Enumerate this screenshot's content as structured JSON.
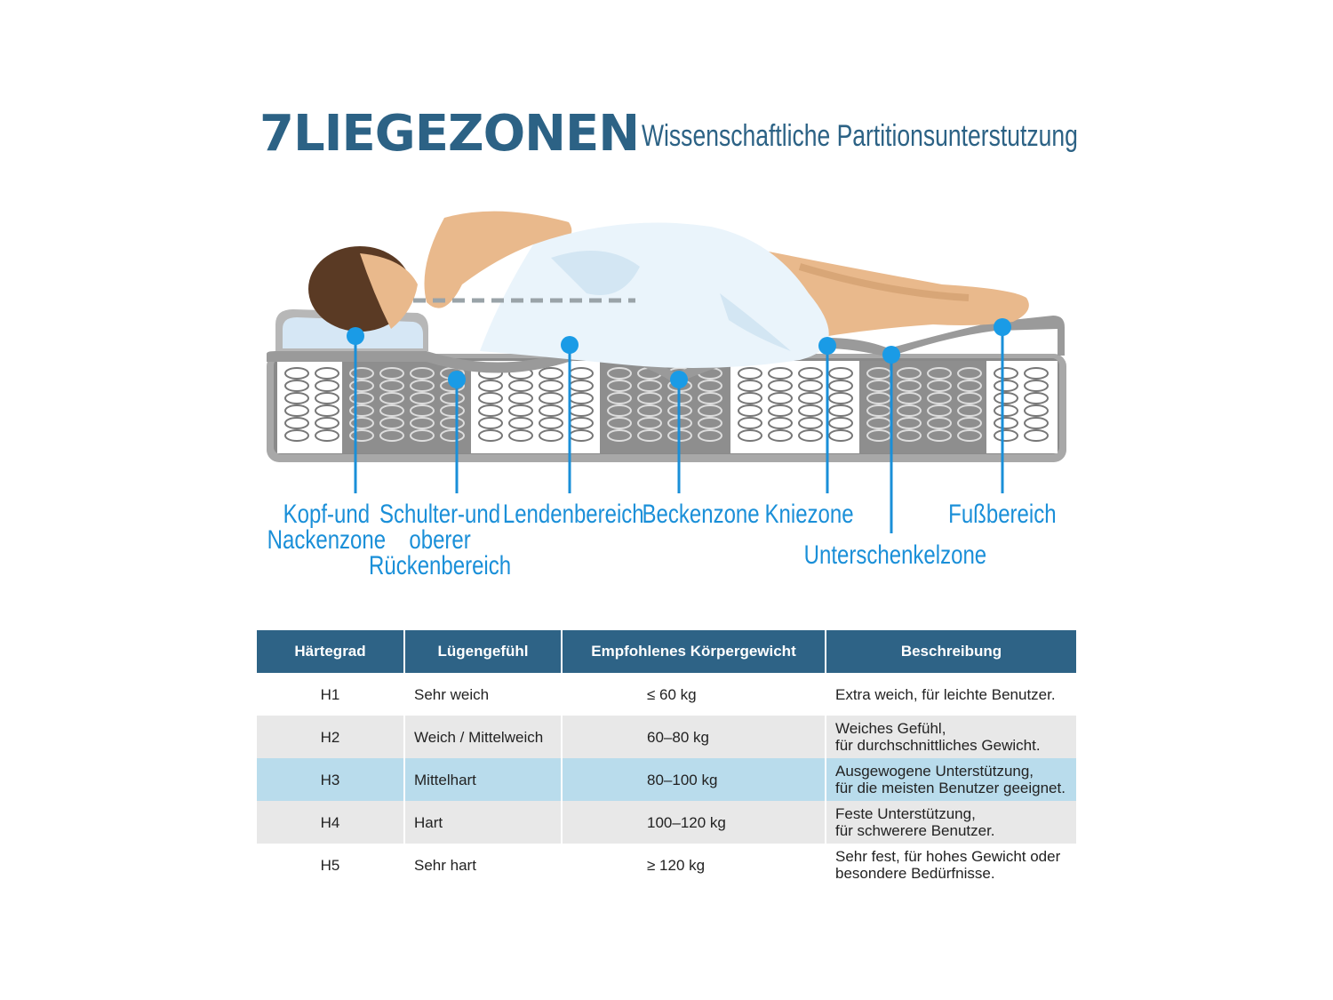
{
  "header": {
    "title": "7LIEGEZONEN",
    "subtitle": "Wissenschaftliche Partitionsunterstutzung"
  },
  "colors": {
    "title": "#2c6285",
    "zone_label": "#1a8fd8",
    "table_header": "#2e6386",
    "highlight_row": "#b9dcec"
  },
  "zones": [
    {
      "label": "Kopf-und Nackenzone",
      "lines": [
        "Kopf-und",
        "Nackenzone"
      ]
    },
    {
      "label": "Schulter-und oberer Rückenbereich",
      "lines": [
        "Schulter-und",
        "oberer",
        "Rückenbereich"
      ]
    },
    {
      "label": "Lendenbereich",
      "lines": [
        "Lendenbereich"
      ]
    },
    {
      "label": "Beckenzone",
      "lines": [
        "Beckenzone"
      ]
    },
    {
      "label": "Kniezone",
      "lines": [
        "Kniezone"
      ]
    },
    {
      "label": "Unterschenkelzone",
      "lines": [
        "Unterschenkelzone"
      ]
    },
    {
      "label": "Fußbereich",
      "lines": [
        "Fußbereich"
      ]
    }
  ],
  "table": {
    "headers": [
      "Härtegrad",
      "Lügengefühl",
      "Empfohlenes Körpergewicht",
      "Beschreibung"
    ],
    "rows": [
      [
        "H1",
        "Sehr weich",
        "≤ 60 kg",
        "Extra weich, für leichte Benutzer."
      ],
      [
        "H2",
        "Weich / Mittelweich",
        "60–80 kg",
        "Weiches Gefühl,\nfür durchschnittliches Gewicht."
      ],
      [
        "H3",
        "Mittelhart",
        "80–100 kg",
        "Ausgewogene Unterstützung,\nfür die meisten Benutzer geeignet."
      ],
      [
        "H4",
        "Hart",
        "100–120 kg",
        "Feste Unterstützung,\nfür schwerere Benutzer."
      ],
      [
        "H5",
        "Sehr hart",
        "≥ 120 kg",
        "Sehr fest, für hohes Gewicht oder\nbesondere Bedürfnisse."
      ]
    ],
    "highlighted_row": "H3"
  }
}
